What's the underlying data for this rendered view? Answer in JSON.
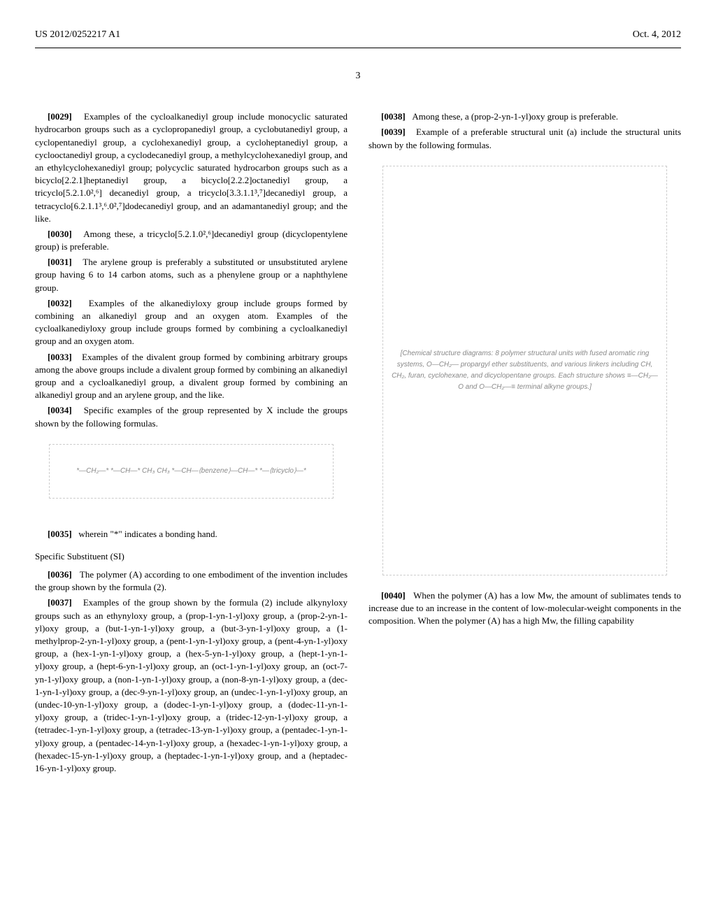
{
  "header": {
    "pub_number": "US 2012/0252217 A1",
    "pub_date": "Oct. 4, 2012"
  },
  "page_number": "3",
  "left_col": {
    "p29_num": "[0029]",
    "p29": "Examples of the cycloalkanediyl group include monocyclic saturated hydrocarbon groups such as a cyclopropanediyl group, a cyclobutanediyl group, a cyclopentanediyl group, a cyclohexanediyl group, a cycloheptanediyl group, a cyclooctanediyl group, a cyclodecanediyl group, a methylcyclohexanediyl group, and an ethylcyclohexanediyl group; polycyclic saturated hydrocarbon groups such as a bicyclo[2.2.1]heptanediyl group, a bicyclo[2.2.2]octanediyl group, a tricyclo[5.2.1.0²,⁶] decanediyl group, a tricyclo[3.3.1.1³,⁷]decanediyl group, a tetracyclo[6.2.1.1³,⁶.0²,⁷]dodecanediyl group, and an adamantanediyl group; and the like.",
    "p30_num": "[0030]",
    "p30": "Among these, a tricyclo[5.2.1.0²,⁶]decanediyl group (dicyclopentylene group) is preferable.",
    "p31_num": "[0031]",
    "p31": "The arylene group is preferably a substituted or unsubstituted arylene group having 6 to 14 carbon atoms, such as a phenylene group or a naphthylene group.",
    "p32_num": "[0032]",
    "p32": "Examples of the alkanediyloxy group include groups formed by combining an alkanediyl group and an oxygen atom. Examples of the cycloalkanediyloxy group include groups formed by combining a cycloalkanediyl group and an oxygen atom.",
    "p33_num": "[0033]",
    "p33": "Examples of the divalent group formed by combining arbitrary groups among the above groups include a divalent group formed by combining an alkanediyl group and a cycloalkanediyl group, a divalent group formed by combining an alkanediyl group and an arylene group, and the like.",
    "p34_num": "[0034]",
    "p34": "Specific examples of the group represented by X include the groups shown by the following formulas.",
    "formula_x_caption": "*—CH₂—*    *—CH—*\n        CH₃              CH₃\n*—CH—⟨benzene⟩—CH—*    *—⟨tricyclo⟩—*",
    "p35_num": "[0035]",
    "p35": "wherein \"*\" indicates a bonding hand.",
    "section_title": "Specific Substituent (SI)",
    "p36_num": "[0036]",
    "p36": "The polymer (A) according to one embodiment of the invention includes the group shown by the formula (2).",
    "p37_num": "[0037]",
    "p37": "Examples of the group shown by the formula (2) include alkynyloxy groups such as an ethynyloxy group, a (prop-1-yn-1-yl)oxy group, a (prop-2-yn-1-yl)oxy group, a (but-1-yn-1-yl)oxy group, a (but-3-yn-1-yl)oxy group, a (1-methylprop-2-yn-1-yl)oxy group, a (pent-1-yn-1-yl)oxy group, a (pent-4-yn-1-yl)oxy group, a (hex-1-yn-1-yl)oxy group, a (hex-5-yn-1-yl)oxy group, a (hept-1-yn-1-yl)oxy group, a (hept-6-yn-1-yl)oxy group, an (oct-1-yn-1-yl)oxy group, an (oct-7-yn-1-yl)oxy group, a (non-1-yn-1-yl)oxy group, a (non-8-yn-1-yl)oxy group, a (dec-1-yn-1-yl)oxy group, a (dec-9-yn-1-yl)oxy group, an (undec-1-yn-1-yl)oxy group, an (undec-10-yn-1-yl)oxy group, a (dodec-1-yn-1-yl)oxy group, a (dodec-11-yn-1-yl)oxy group, a (tridec-1-yn-1-yl)oxy group, a (tridec-12-yn-1-yl)oxy group, a (tetradec-1-yn-1-yl)oxy group, a (tetradec-13-yn-1-yl)oxy group, a (pentadec-1-yn-1-yl)oxy group, a (pentadec-14-yn-1-yl)oxy group, a (hexadec-1-yn-1-yl)oxy group, a (hexadec-15-yn-1-yl)oxy group, a (heptadec-1-yn-1-yl)oxy group, and a (heptadec-16-yn-1-yl)oxy group."
  },
  "right_col": {
    "p38_num": "[0038]",
    "p38": "Among these, a (prop-2-yn-1-yl)oxy group is preferable.",
    "p39_num": "[0039]",
    "p39": "Example of a preferable structural unit (a) include the structural units shown by the following formulas.",
    "formula_a_caption": "[Chemical structure diagrams: 8 polymer structural units with fused aromatic ring systems, O—CH₂— propargyl ether substituents, and various linkers including CH, CH₂, furan, cyclohexane, and dicyclopentane groups. Each structure shows ≡—CH₂—O and O—CH₂—≡ terminal alkyne groups.]",
    "p40_num": "[0040]",
    "p40": "When the polymer (A) has a low Mw, the amount of sublimates tends to increase due to an increase in the content of low-molecular-weight components in the composition. When the polymer (A) has a high Mw, the filling capability"
  }
}
